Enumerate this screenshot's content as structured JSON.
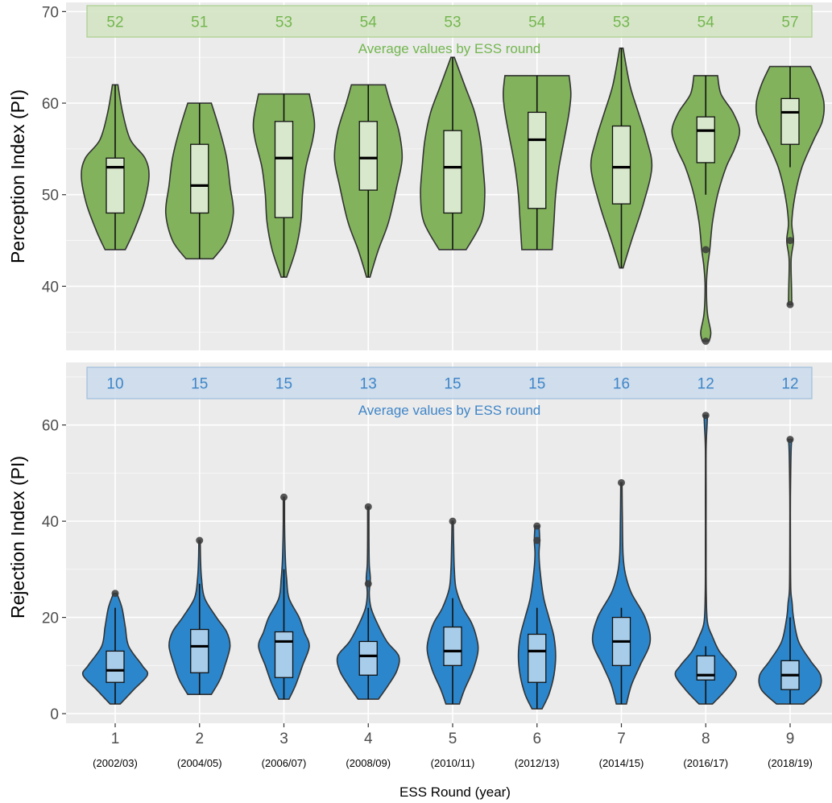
{
  "chart_data": [
    {
      "type": "violin",
      "ylabel": "Perception Index (PI)",
      "ylim": [
        33,
        71
      ],
      "yticks": [
        40,
        50,
        60,
        70
      ],
      "categories": [
        "1",
        "2",
        "3",
        "4",
        "5",
        "6",
        "7",
        "8",
        "9"
      ],
      "averages": [
        "52",
        "51",
        "53",
        "54",
        "53",
        "54",
        "53",
        "54",
        "57"
      ],
      "averages_caption": "Average values by ESS round",
      "colors": {
        "violin": "#82b35c",
        "box": "#d8e8cc",
        "banner_fill": "#d4e4c3",
        "banner_stroke": "#a9cf8c",
        "text": "#73b64f"
      },
      "distributions": [
        {
          "min": 44,
          "max": 62,
          "q1": 48,
          "median": 53,
          "q3": 54,
          "whisker_low": 44,
          "whisker_high": 62,
          "outliers": [],
          "shape": [
            [
              44,
              0.3
            ],
            [
              46,
              0.55
            ],
            [
              49,
              0.85
            ],
            [
              52,
              1
            ],
            [
              54,
              0.88
            ],
            [
              56,
              0.45
            ],
            [
              59,
              0.22
            ],
            [
              62,
              0.08
            ]
          ]
        },
        {
          "min": 43,
          "max": 60,
          "q1": 48,
          "median": 51,
          "q3": 55.5,
          "whisker_low": 43,
          "whisker_high": 60,
          "outliers": [],
          "shape": [
            [
              43,
              0.4
            ],
            [
              45,
              0.8
            ],
            [
              48,
              1
            ],
            [
              51,
              0.9
            ],
            [
              54,
              0.8
            ],
            [
              57,
              0.6
            ],
            [
              60,
              0.35
            ]
          ]
        },
        {
          "min": 41,
          "max": 61,
          "q1": 47.5,
          "median": 54,
          "q3": 58,
          "whisker_low": 41,
          "whisker_high": 61,
          "outliers": [],
          "shape": [
            [
              41,
              0.08
            ],
            [
              44,
              0.35
            ],
            [
              47,
              0.5
            ],
            [
              50,
              0.55
            ],
            [
              53,
              0.65
            ],
            [
              56,
              0.85
            ],
            [
              58,
              0.9
            ],
            [
              61,
              0.75
            ]
          ]
        },
        {
          "min": 41,
          "max": 62,
          "q1": 50.5,
          "median": 54,
          "q3": 58,
          "whisker_low": 41,
          "whisker_high": 62,
          "outliers": [],
          "shape": [
            [
              41,
              0.05
            ],
            [
              44,
              0.3
            ],
            [
              47,
              0.6
            ],
            [
              51,
              0.85
            ],
            [
              54,
              1
            ],
            [
              57,
              0.9
            ],
            [
              60,
              0.65
            ],
            [
              62,
              0.5
            ]
          ]
        },
        {
          "min": 44,
          "max": 65,
          "q1": 48,
          "median": 53,
          "q3": 57,
          "whisker_low": 44,
          "whisker_high": 65,
          "outliers": [],
          "shape": [
            [
              44,
              0.4
            ],
            [
              47,
              0.85
            ],
            [
              50,
              0.95
            ],
            [
              53,
              0.9
            ],
            [
              56,
              0.82
            ],
            [
              59,
              0.65
            ],
            [
              62,
              0.35
            ],
            [
              65,
              0.05
            ]
          ]
        },
        {
          "min": 44,
          "max": 63,
          "q1": 48.5,
          "median": 56,
          "q3": 59,
          "whisker_low": 44,
          "whisker_high": 63,
          "outliers": [],
          "shape": [
            [
              44,
              0.45
            ],
            [
              47,
              0.5
            ],
            [
              50,
              0.55
            ],
            [
              53,
              0.65
            ],
            [
              56,
              0.8
            ],
            [
              59,
              0.95
            ],
            [
              61,
              1
            ],
            [
              63,
              0.95
            ]
          ]
        },
        {
          "min": 42,
          "max": 66,
          "q1": 49,
          "median": 53,
          "q3": 57.5,
          "whisker_low": 42,
          "whisker_high": 66,
          "outliers": [],
          "shape": [
            [
              42,
              0.05
            ],
            [
              45,
              0.3
            ],
            [
              49,
              0.65
            ],
            [
              53,
              0.9
            ],
            [
              56,
              0.75
            ],
            [
              59,
              0.5
            ],
            [
              62,
              0.25
            ],
            [
              66,
              0.05
            ]
          ]
        },
        {
          "min": 34,
          "max": 63,
          "q1": 53.5,
          "median": 57,
          "q3": 58.5,
          "whisker_low": 50,
          "whisker_high": 63,
          "outliers": [
            34,
            44
          ],
          "shape": [
            [
              34,
              0.1
            ],
            [
              35,
              0.15
            ],
            [
              37,
              0.05
            ],
            [
              40,
              0.02
            ],
            [
              42,
              0.05
            ],
            [
              44,
              0.12
            ],
            [
              47,
              0.2
            ],
            [
              50,
              0.35
            ],
            [
              53,
              0.6
            ],
            [
              55,
              0.85
            ],
            [
              57,
              1
            ],
            [
              59,
              0.8
            ],
            [
              61,
              0.45
            ],
            [
              63,
              0.35
            ]
          ]
        },
        {
          "min": 38,
          "max": 64,
          "q1": 55.5,
          "median": 59,
          "q3": 60.5,
          "whisker_low": 53,
          "whisker_high": 64,
          "outliers": [
            38,
            45
          ],
          "shape": [
            [
              38,
              0.05
            ],
            [
              40,
              0.04
            ],
            [
              43,
              0.03
            ],
            [
              45,
              0.1
            ],
            [
              47,
              0.05
            ],
            [
              50,
              0.15
            ],
            [
              53,
              0.35
            ],
            [
              56,
              0.7
            ],
            [
              58,
              0.95
            ],
            [
              60,
              1
            ],
            [
              62,
              0.85
            ],
            [
              64,
              0.6
            ]
          ]
        }
      ]
    },
    {
      "type": "violin",
      "ylabel": "Rejection Index (PI)",
      "ylim": [
        -2,
        73
      ],
      "yticks": [
        0,
        20,
        40,
        60
      ],
      "categories": [
        "1",
        "2",
        "3",
        "4",
        "5",
        "6",
        "7",
        "8",
        "9"
      ],
      "averages": [
        "10",
        "15",
        "15",
        "13",
        "15",
        "15",
        "16",
        "12",
        "12"
      ],
      "averages_caption": "Average values by ESS round",
      "colors": {
        "violin": "#2b86cc",
        "box": "#a8cdea",
        "banner_fill": "#ccdcec",
        "banner_stroke": "#9fbedd",
        "text": "#3f86c8"
      },
      "distributions": [
        {
          "min": 2,
          "max": 25,
          "q1": 6.5,
          "median": 9,
          "q3": 13,
          "whisker_low": 2,
          "whisker_high": 22,
          "outliers": [
            25
          ],
          "shape": [
            [
              2,
              0.15
            ],
            [
              5,
              0.55
            ],
            [
              8,
              0.95
            ],
            [
              10,
              0.8
            ],
            [
              14,
              0.4
            ],
            [
              18,
              0.3
            ],
            [
              22,
              0.2
            ],
            [
              25,
              0.05
            ]
          ]
        },
        {
          "min": 4,
          "max": 36,
          "q1": 8.5,
          "median": 14,
          "q3": 17.5,
          "whisker_low": 4,
          "whisker_high": 27,
          "outliers": [
            36
          ],
          "shape": [
            [
              4,
              0.35
            ],
            [
              7,
              0.6
            ],
            [
              10,
              0.75
            ],
            [
              14,
              0.9
            ],
            [
              17,
              0.8
            ],
            [
              20,
              0.5
            ],
            [
              24,
              0.15
            ],
            [
              28,
              0.06
            ],
            [
              32,
              0.03
            ],
            [
              36,
              0.02
            ]
          ]
        },
        {
          "min": 3,
          "max": 45,
          "q1": 7.5,
          "median": 15,
          "q3": 17,
          "whisker_low": 3,
          "whisker_high": 30,
          "outliers": [
            45
          ],
          "shape": [
            [
              3,
              0.15
            ],
            [
              6,
              0.35
            ],
            [
              10,
              0.55
            ],
            [
              14,
              0.75
            ],
            [
              17,
              0.6
            ],
            [
              20,
              0.45
            ],
            [
              24,
              0.15
            ],
            [
              28,
              0.08
            ],
            [
              31,
              0.05
            ],
            [
              35,
              0.03
            ],
            [
              40,
              0.02
            ],
            [
              45,
              0.02
            ]
          ]
        },
        {
          "min": 3,
          "max": 43,
          "q1": 8,
          "median": 12,
          "q3": 15,
          "whisker_low": 3,
          "whisker_high": 22,
          "outliers": [
            27,
            43
          ],
          "shape": [
            [
              3,
              0.3
            ],
            [
              6,
              0.6
            ],
            [
              9,
              0.85
            ],
            [
              12,
              0.9
            ],
            [
              15,
              0.55
            ],
            [
              19,
              0.25
            ],
            [
              22,
              0.08
            ],
            [
              25,
              0.03
            ],
            [
              28,
              0.06
            ],
            [
              31,
              0.03
            ],
            [
              36,
              0.02
            ],
            [
              43,
              0.02
            ]
          ]
        },
        {
          "min": 2,
          "max": 40,
          "q1": 10,
          "median": 13,
          "q3": 18,
          "whisker_low": 2,
          "whisker_high": 24,
          "outliers": [
            40
          ],
          "shape": [
            [
              2,
              0.2
            ],
            [
              5,
              0.35
            ],
            [
              9,
              0.6
            ],
            [
              13,
              0.75
            ],
            [
              16,
              0.7
            ],
            [
              19,
              0.55
            ],
            [
              22,
              0.3
            ],
            [
              26,
              0.1
            ],
            [
              30,
              0.05
            ],
            [
              35,
              0.03
            ],
            [
              40,
              0.02
            ]
          ]
        },
        {
          "min": 1,
          "max": 39,
          "q1": 6.5,
          "median": 13,
          "q3": 16.5,
          "whisker_low": 1,
          "whisker_high": 22,
          "outliers": [
            36,
            39
          ],
          "shape": [
            [
              1,
              0.15
            ],
            [
              4,
              0.35
            ],
            [
              8,
              0.5
            ],
            [
              12,
              0.55
            ],
            [
              16,
              0.5
            ],
            [
              20,
              0.35
            ],
            [
              24,
              0.2
            ],
            [
              29,
              0.1
            ],
            [
              33,
              0.06
            ],
            [
              36,
              0.08
            ],
            [
              39,
              0.06
            ]
          ]
        },
        {
          "min": 2,
          "max": 48,
          "q1": 10,
          "median": 15,
          "q3": 20,
          "whisker_low": 2,
          "whisker_high": 22,
          "outliers": [
            48
          ],
          "shape": [
            [
              2,
              0.15
            ],
            [
              6,
              0.3
            ],
            [
              10,
              0.55
            ],
            [
              15,
              0.85
            ],
            [
              20,
              0.7
            ],
            [
              25,
              0.3
            ],
            [
              29,
              0.12
            ],
            [
              33,
              0.05
            ],
            [
              40,
              0.03
            ],
            [
              48,
              0.02
            ]
          ]
        },
        {
          "min": 2,
          "max": 62,
          "q1": 7,
          "median": 8,
          "q3": 12,
          "whisker_low": 2,
          "whisker_high": 14,
          "outliers": [
            62
          ],
          "shape": [
            [
              2,
              0.2
            ],
            [
              5,
              0.6
            ],
            [
              8,
              0.9
            ],
            [
              10,
              0.75
            ],
            [
              13,
              0.4
            ],
            [
              16,
              0.2
            ],
            [
              19,
              0.05
            ],
            [
              25,
              0.015
            ],
            [
              35,
              0.01
            ],
            [
              45,
              0.01
            ],
            [
              55,
              0.01
            ],
            [
              60,
              0.04
            ],
            [
              62,
              0.05
            ]
          ]
        },
        {
          "min": 2,
          "max": 57,
          "q1": 5,
          "median": 8,
          "q3": 11,
          "whisker_low": 2,
          "whisker_high": 20,
          "outliers": [
            57
          ],
          "shape": [
            [
              2,
              0.4
            ],
            [
              5,
              0.85
            ],
            [
              8,
              0.9
            ],
            [
              11,
              0.6
            ],
            [
              15,
              0.25
            ],
            [
              20,
              0.1
            ],
            [
              23,
              0.06
            ],
            [
              26,
              0.02
            ],
            [
              35,
              0.01
            ],
            [
              45,
              0.01
            ],
            [
              55,
              0.03
            ],
            [
              57,
              0.06
            ]
          ]
        }
      ]
    }
  ],
  "x_axis": {
    "title": "ESS Round (year)",
    "ticks": [
      "1",
      "2",
      "3",
      "4",
      "5",
      "6",
      "7",
      "8",
      "9"
    ],
    "subticks": [
      "(2002/03)",
      "(2004/05)",
      "(2006/07)",
      "(2008/09)",
      "(2010/11)",
      "(2012/13)",
      "(2014/15)",
      "(2016/17)",
      "(2018/19)"
    ]
  }
}
